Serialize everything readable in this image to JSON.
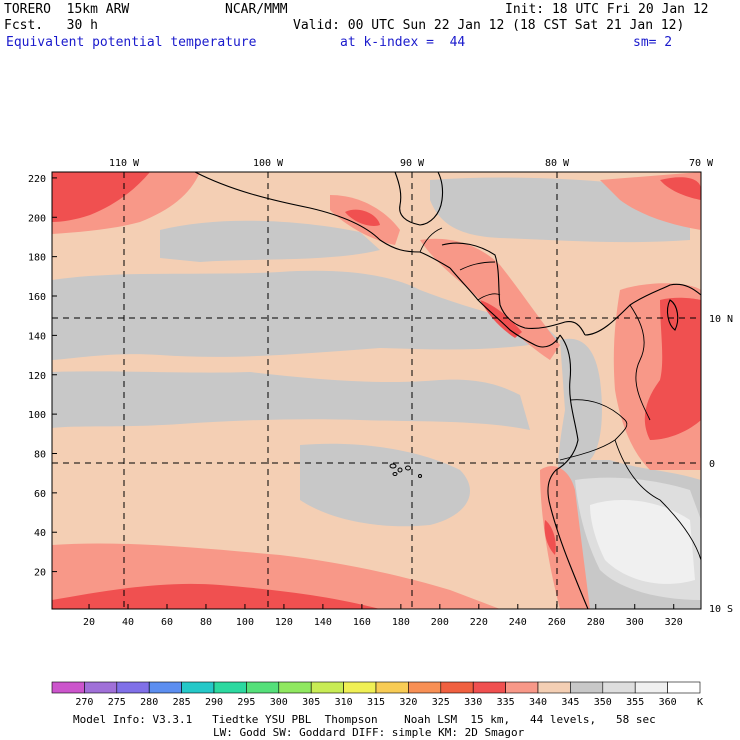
{
  "header": {
    "model": "TORERO  15km ARW",
    "center": "NCAR/MMM",
    "init": "Init: 18 UTC Fri 20 Jan 12",
    "fcst": "Fcst.   30 h",
    "valid": "Valid: 00 UTC Sun 22 Jan 12 (18 CST Sat 21 Jan 12)",
    "field": "Equivalent potential temperature",
    "level": "at k-index =  44",
    "smooth": "sm= 2"
  },
  "map": {
    "lon_labels": [
      "110 W",
      "100 W",
      "90 W",
      "80 W",
      "70 W"
    ],
    "lat_labels": [
      "10 N",
      "0",
      "10 S"
    ],
    "x_ticks": [
      "20",
      "40",
      "60",
      "80",
      "100",
      "120",
      "140",
      "160",
      "180",
      "200",
      "220",
      "240",
      "260",
      "280",
      "300",
      "320"
    ],
    "y_ticks": [
      "20",
      "40",
      "60",
      "80",
      "100",
      "120",
      "140",
      "160",
      "180",
      "200",
      "220"
    ],
    "grid_range": {
      "x": [
        1,
        334
      ],
      "y": [
        1,
        223
      ]
    }
  },
  "colorbar": {
    "labels": [
      "270",
      "275",
      "280",
      "285",
      "290",
      "295",
      "300",
      "305",
      "310",
      "315",
      "320",
      "325",
      "330",
      "335",
      "340",
      "345",
      "350",
      "355",
      "360"
    ],
    "unit": "K",
    "colors": [
      "#cc55cc",
      "#a070d8",
      "#8070e8",
      "#5c8ef0",
      "#25c8c8",
      "#2cd9a0",
      "#55e07a",
      "#90e860",
      "#c8ec55",
      "#f0f055",
      "#f8cc55",
      "#f89055",
      "#f06040",
      "#f05050",
      "#f89888",
      "#f4cfb4",
      "#c8c8c8",
      "#dedede",
      "#f0f0f0",
      "#ffffff"
    ]
  },
  "footer": {
    "line1": "Model Info: V3.3.1   Tiedtke YSU PBL  Thompson    Noah LSM  15 km,   44 levels,   58 sec",
    "line2": "LW: Godd SW: Goddard DIFF: simple KM: 2D Smagor"
  }
}
